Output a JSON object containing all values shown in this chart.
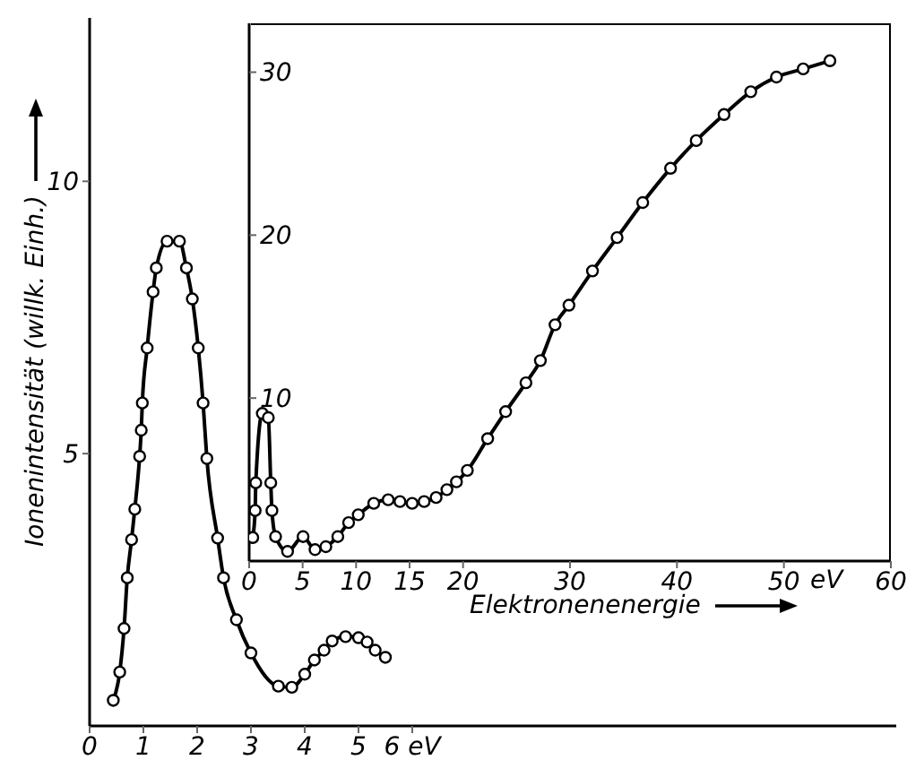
{
  "chart_data": [
    {
      "type": "line",
      "xlabel": "Elektronenenergie",
      "ylabel": "Ionenintensität (willk. Einh.)",
      "xlim": [
        0,
        15
      ],
      "ylim": [
        0,
        13
      ],
      "xticks": [
        0,
        1,
        2,
        3,
        4,
        5,
        {
          "value": 6,
          "label": "6 eV"
        }
      ],
      "yticks": [
        5,
        10
      ],
      "marker": "circle",
      "x": [
        0.44,
        0.56,
        0.64,
        0.7,
        0.78,
        0.84,
        0.93,
        0.96,
        0.98,
        1.07,
        1.18,
        1.24,
        1.44,
        1.67,
        1.8,
        1.91,
        2.02,
        2.11,
        2.18,
        2.38,
        2.49,
        2.73,
        3.0,
        3.51,
        3.76,
        4.0,
        4.18,
        4.36,
        4.51,
        4.76,
        5.0,
        5.16,
        5.31,
        5.5
      ],
      "series": [
        {
          "color": "#000000",
          "values": [
            0.47,
            0.99,
            1.79,
            2.72,
            3.42,
            3.98,
            4.95,
            5.43,
            5.93,
            6.94,
            7.97,
            8.41,
            8.9,
            8.9,
            8.41,
            7.84,
            6.94,
            5.93,
            4.91,
            3.45,
            2.72,
            1.95,
            1.34,
            0.73,
            0.71,
            0.95,
            1.21,
            1.39,
            1.56,
            1.64,
            1.62,
            1.54,
            1.39,
            1.26
          ]
        }
      ]
    },
    {
      "type": "line",
      "xlabel": "eV",
      "xlim": [
        0,
        60
      ],
      "ylim": [
        0,
        33
      ],
      "xticks": [
        0,
        5,
        10,
        15,
        20,
        30,
        40,
        50,
        60
      ],
      "yticks": [
        10,
        20,
        30
      ],
      "marker": "circle",
      "x": [
        0.34,
        0.56,
        0.62,
        1.23,
        1.79,
        2.02,
        2.13,
        2.47,
        3.59,
        5.04,
        6.16,
        7.17,
        8.29,
        9.3,
        10.2,
        11.65,
        13.0,
        14.1,
        15.24,
        16.36,
        17.48,
        18.49,
        19.38,
        20.4,
        22.3,
        23.98,
        25.88,
        27.23,
        28.6,
        29.9,
        32.1,
        34.4,
        36.8,
        39.4,
        41.8,
        44.4,
        46.9,
        49.3,
        51.8,
        54.3
      ],
      "series": [
        {
          "color": "#000000",
          "values": [
            1.44,
            3.1,
            4.8,
            9.06,
            8.8,
            4.8,
            3.1,
            1.5,
            0.59,
            1.5,
            0.7,
            0.88,
            1.5,
            2.36,
            2.84,
            3.54,
            3.76,
            3.65,
            3.54,
            3.65,
            3.9,
            4.38,
            4.86,
            5.56,
            7.51,
            9.17,
            10.94,
            12.3,
            14.5,
            15.7,
            17.8,
            19.85,
            22.0,
            24.1,
            25.8,
            27.4,
            28.8,
            29.7,
            30.2,
            30.7
          ]
        }
      ]
    }
  ]
}
